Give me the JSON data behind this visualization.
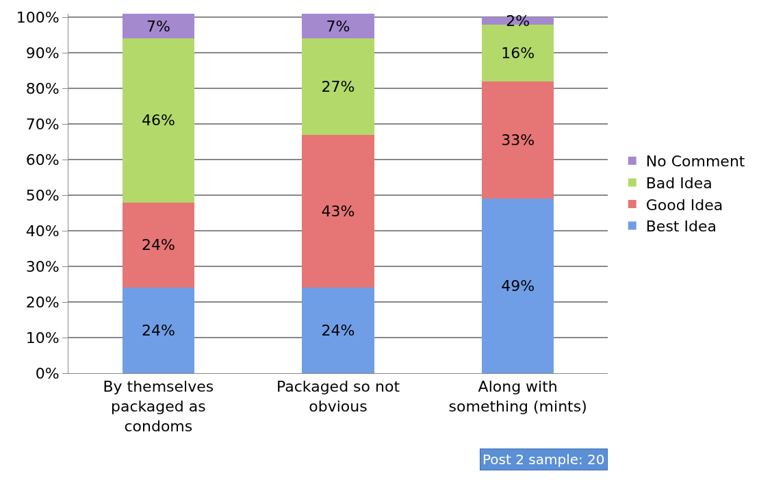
{
  "chart_data": {
    "type": "bar",
    "stacked": true,
    "categories": [
      "By themselves packaged as condoms",
      "Packaged so not obvious",
      "Along with something (mints)"
    ],
    "series": [
      {
        "name": "Best Idea",
        "color": "#6f9ee6",
        "values": [
          24,
          24,
          49
        ],
        "value_labels": [
          "24%",
          "24%",
          "49%"
        ]
      },
      {
        "name": "Good Idea",
        "color": "#e67575",
        "values": [
          24,
          43,
          33
        ],
        "value_labels": [
          "24%",
          "43%",
          "33%"
        ]
      },
      {
        "name": "Bad Idea",
        "color": "#b3d96a",
        "values": [
          46,
          27,
          16
        ],
        "value_labels": [
          "46%",
          "27%",
          "16%"
        ]
      },
      {
        "name": "No Comment",
        "color": "#a489cf",
        "values": [
          7,
          7,
          2
        ],
        "value_labels": [
          "7%",
          "7%",
          "2%"
        ]
      }
    ],
    "ylim": [
      0,
      101
    ],
    "yticks": [
      {
        "value": 0,
        "label": "0%"
      },
      {
        "value": 10,
        "label": "10%"
      },
      {
        "value": 20,
        "label": "20%"
      },
      {
        "value": 30,
        "label": "30%"
      },
      {
        "value": 40,
        "label": "40%"
      },
      {
        "value": 50,
        "label": "50%"
      },
      {
        "value": 60,
        "label": "60%"
      },
      {
        "value": 70,
        "label": "70%"
      },
      {
        "value": 80,
        "label": "80%"
      },
      {
        "value": 90,
        "label": "90%"
      },
      {
        "value": 100,
        "label": "100%"
      }
    ],
    "grid": "y",
    "legend": "right",
    "annotations": [
      "Post 2 sample: 20"
    ]
  }
}
